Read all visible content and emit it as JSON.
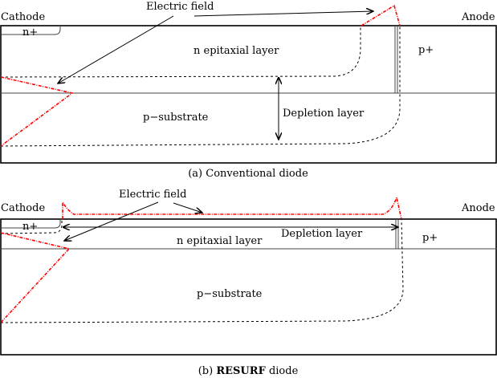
{
  "colors": {
    "electric_field": "#ff0000",
    "outline": "#000000"
  },
  "panel_a": {
    "cathode": "Cathode",
    "anode": "Anode",
    "n_plus": "n+",
    "p_plus": "p+",
    "n_epi": "n epitaxial layer",
    "p_sub": "p−substrate",
    "electric_field": "Electric field",
    "depletion": "Depletion layer",
    "caption": "(a) Conventional diode"
  },
  "panel_b": {
    "cathode": "Cathode",
    "anode": "Anode",
    "n_plus": "n+",
    "p_plus": "p+",
    "n_epi": "n epitaxial layer",
    "p_sub": "p−substrate",
    "electric_field": "Electric field",
    "depletion": "Depletion layer",
    "caption_prefix": "(b) ",
    "caption_bold": "RESURF",
    "caption_suffix": " diode"
  }
}
